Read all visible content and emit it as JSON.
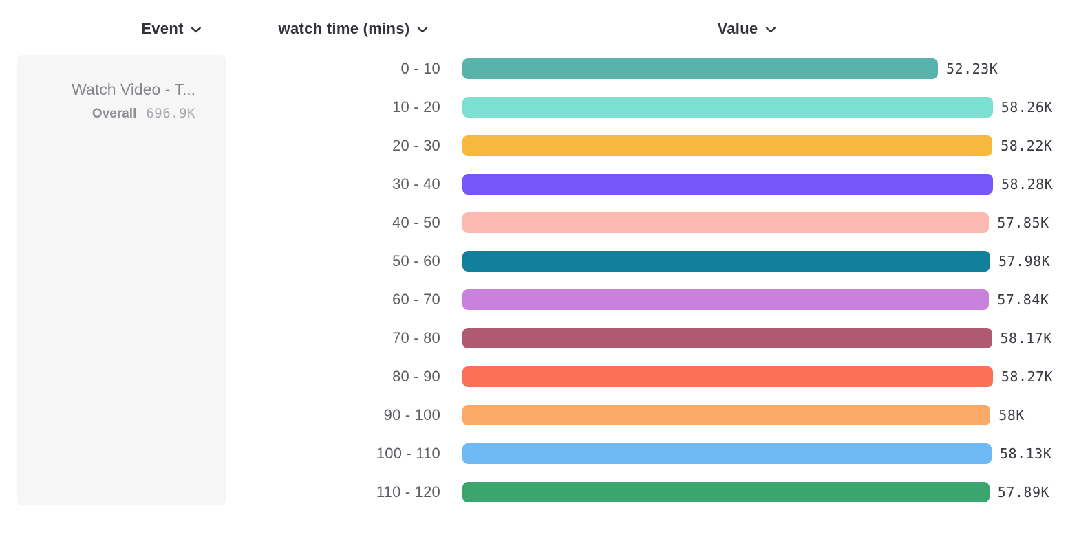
{
  "header": {
    "event_label": "Event",
    "breakdown_label": "watch time (mins)",
    "value_label": "Value"
  },
  "event_card": {
    "title": "Watch Video - T...",
    "overall_label": "Overall",
    "overall_value": "696.9K"
  },
  "chart_data": {
    "type": "bar",
    "orientation": "horizontal",
    "title": "",
    "xlabel": "Value",
    "ylabel": "watch time (mins)",
    "xlim": [
      0,
      58280
    ],
    "grid": false,
    "legend": false,
    "categories": [
      "0 - 10",
      "10 - 20",
      "20 - 30",
      "30 - 40",
      "40 - 50",
      "50 - 60",
      "60 - 70",
      "70 - 80",
      "80 - 90",
      "90 - 100",
      "100 - 110",
      "110 - 120"
    ],
    "values": [
      52230,
      58260,
      58220,
      58280,
      57850,
      57980,
      57840,
      58170,
      58270,
      58000,
      58130,
      57890
    ],
    "value_labels": [
      "52.23K",
      "58.26K",
      "58.22K",
      "58.28K",
      "57.85K",
      "57.98K",
      "57.84K",
      "58.17K",
      "58.27K",
      "58K",
      "58.13K",
      "57.89K"
    ],
    "colors": [
      "#57b3ab",
      "#7edfd3",
      "#f6b83d",
      "#7656fa",
      "#fcb9b1",
      "#127f9d",
      "#c981dd",
      "#af5a6e",
      "#fb7158",
      "#faa967",
      "#6fb9f4",
      "#3ca56f"
    ],
    "text_colors": {
      "header": "#32333b",
      "category_label": "#5d5e64",
      "value_label": "#3a3b42",
      "card_title": "#84848c",
      "card_overall": "#8f8f96",
      "card_overall_value": "#a7a7ad"
    }
  }
}
